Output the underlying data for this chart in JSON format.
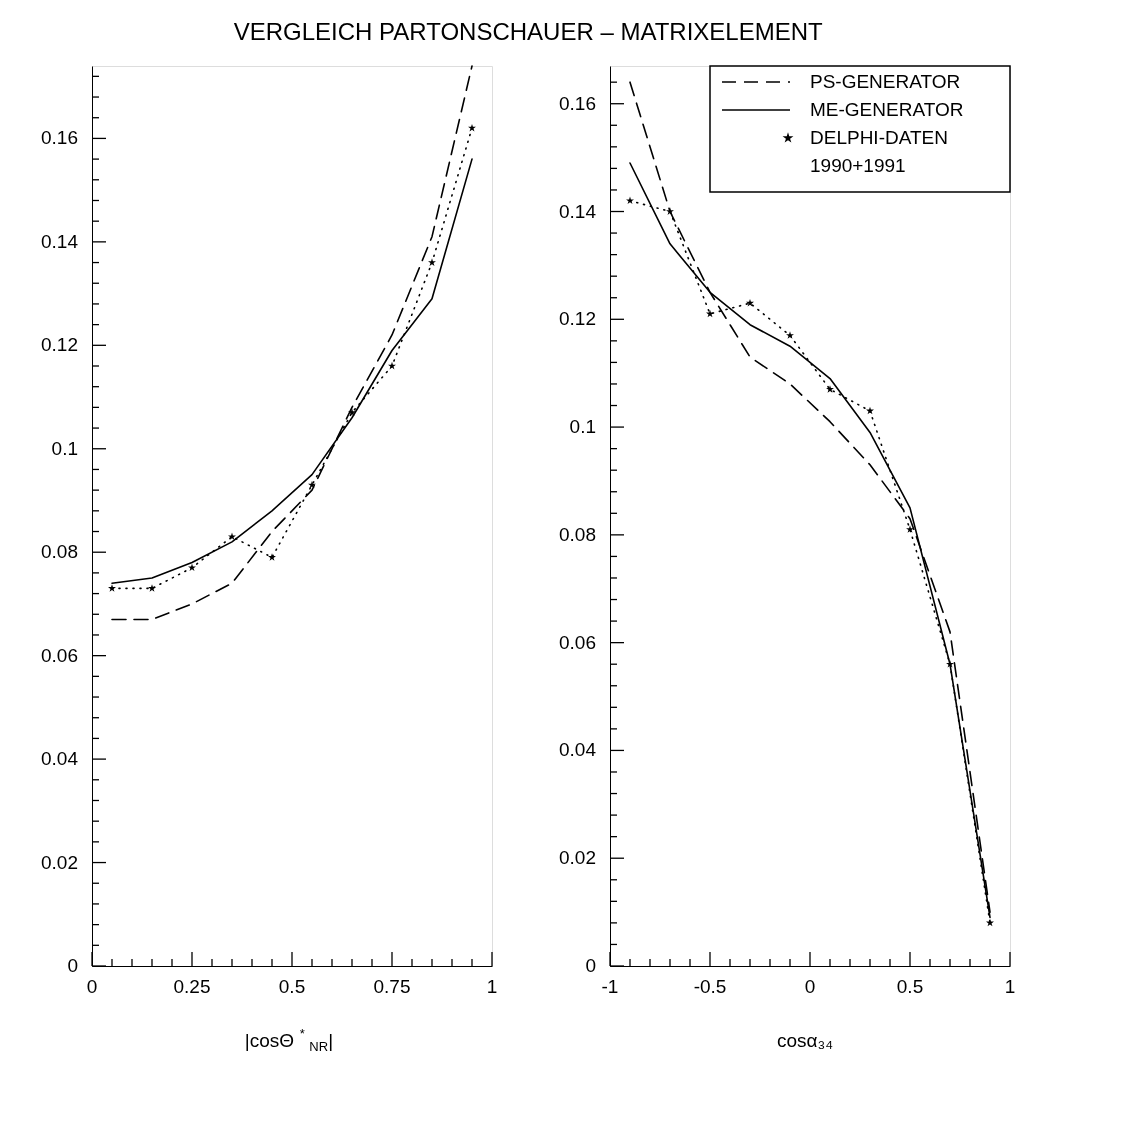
{
  "chart_data": [
    {
      "type": "line",
      "title": "VERGLEICH PARTONSCHAUER – MATRIXELEMENT",
      "xlabel": "|cosΘ$^{*}$$_{NR}$|",
      "x": [
        0.05,
        0.15,
        0.25,
        0.35,
        0.45,
        0.55,
        0.65,
        0.75,
        0.85,
        0.95
      ],
      "series": [
        {
          "color": "#000000",
          "line_style": "dashed",
          "marker": "none",
          "values": [
            0.067,
            0.067,
            0.07,
            0.074,
            0.084,
            0.092,
            0.108,
            0.122,
            0.141,
            0.174
          ]
        },
        {
          "color": "#000000",
          "line_style": "solid",
          "marker": "none",
          "values": [
            0.074,
            0.075,
            0.078,
            0.082,
            0.088,
            0.095,
            0.106,
            0.119,
            0.129,
            0.156
          ]
        },
        {
          "color": "#000000",
          "line_style": "dotted",
          "marker": "star",
          "values": [
            0.073,
            0.073,
            0.077,
            0.083,
            0.079,
            0.093,
            0.107,
            0.116,
            0.136,
            0.162
          ]
        }
      ],
      "xlim": [
        0,
        1
      ],
      "xticks": [
        0,
        {
          "value": 0.05,
          "label": null
        },
        {
          "value": 0.1,
          "label": null
        },
        {
          "value": 0.15,
          "label": null
        },
        {
          "value": 0.2,
          "label": null
        },
        0.25,
        {
          "value": 0.3,
          "label": null
        },
        {
          "value": 0.35,
          "label": null
        },
        {
          "value": 0.4,
          "label": null
        },
        {
          "value": 0.45,
          "label": null
        },
        0.5,
        {
          "value": 0.55,
          "label": null
        },
        {
          "value": 0.6,
          "label": null
        },
        {
          "value": 0.65,
          "label": null
        },
        {
          "value": 0.7,
          "label": null
        },
        0.75,
        {
          "value": 0.8,
          "label": null
        },
        {
          "value": 0.85,
          "label": null
        },
        {
          "value": 0.9,
          "label": null
        },
        {
          "value": 0.95,
          "label": null
        },
        1
      ],
      "ylim": [
        0,
        0.174
      ],
      "yticks": [
        0,
        {
          "value": 0.004,
          "label": null
        },
        {
          "value": 0.008,
          "label": null
        },
        {
          "value": 0.012,
          "label": null
        },
        {
          "value": 0.016,
          "label": null
        },
        0.02,
        {
          "value": 0.024,
          "label": null
        },
        {
          "value": 0.028,
          "label": null
        },
        {
          "value": 0.032,
          "label": null
        },
        {
          "value": 0.036,
          "label": null
        },
        0.04,
        {
          "value": 0.044,
          "label": null
        },
        {
          "value": 0.048,
          "label": null
        },
        {
          "value": 0.052,
          "label": null
        },
        {
          "value": 0.056,
          "label": null
        },
        0.06,
        {
          "value": 0.064,
          "label": null
        },
        {
          "value": 0.068,
          "label": null
        },
        {
          "value": 0.072,
          "label": null
        },
        {
          "value": 0.076,
          "label": null
        },
        0.08,
        {
          "value": 0.084,
          "label": null
        },
        {
          "value": 0.088,
          "label": null
        },
        {
          "value": 0.092,
          "label": null
        },
        {
          "value": 0.096,
          "label": null
        },
        0.1,
        {
          "value": 0.104,
          "label": null
        },
        {
          "value": 0.108,
          "label": null
        },
        {
          "value": 0.112,
          "label": null
        },
        {
          "value": 0.116,
          "label": null
        },
        0.12,
        {
          "value": 0.124,
          "label": null
        },
        {
          "value": 0.128,
          "label": null
        },
        {
          "value": 0.132,
          "label": null
        },
        {
          "value": 0.136,
          "label": null
        },
        0.14,
        {
          "value": 0.144,
          "label": null
        },
        {
          "value": 0.148,
          "label": null
        },
        {
          "value": 0.152,
          "label": null
        },
        {
          "value": 0.156,
          "label": null
        },
        0.16,
        {
          "value": 0.164,
          "label": null
        },
        {
          "value": 0.168,
          "label": null
        },
        {
          "value": 0.172,
          "label": null
        }
      ]
    },
    {
      "type": "line",
      "xlabel": "cosα₃₄",
      "legend": "top right",
      "x": [
        -0.9,
        -0.7,
        -0.5,
        -0.3,
        -0.1,
        0.1,
        0.3,
        0.5,
        0.7,
        0.9
      ],
      "series": [
        {
          "name": "PS-GENERATOR",
          "color": "#000000",
          "line_style": "dashed",
          "marker": "none",
          "values": [
            0.164,
            0.14,
            0.125,
            0.113,
            0.108,
            0.101,
            0.093,
            0.083,
            0.062,
            0.01
          ]
        },
        {
          "name": "ME-GENERATOR",
          "color": "#000000",
          "line_style": "solid",
          "marker": "none",
          "values": [
            0.149,
            0.134,
            0.125,
            0.119,
            0.115,
            0.109,
            0.099,
            0.085,
            0.056,
            0.009
          ]
        },
        {
          "name": "DELPHI-DATEN\n1990+1991",
          "color": "#000000",
          "line_style": "dotted",
          "marker": "star",
          "values": [
            0.142,
            0.14,
            0.121,
            0.123,
            0.117,
            0.107,
            0.103,
            0.081,
            0.056,
            0.008
          ]
        }
      ],
      "xlim": [
        -1,
        1
      ],
      "xticks": [
        -1,
        {
          "value": -0.9,
          "label": null
        },
        {
          "value": -0.8,
          "label": null
        },
        {
          "value": -0.7,
          "label": null
        },
        {
          "value": -0.6,
          "label": null
        },
        -0.5,
        {
          "value": -0.4,
          "label": null
        },
        {
          "value": -0.3,
          "label": null
        },
        {
          "value": -0.2,
          "label": null
        },
        {
          "value": -0.1,
          "label": null
        },
        0,
        {
          "value": 0.1,
          "label": null
        },
        {
          "value": 0.2,
          "label": null
        },
        {
          "value": 0.3,
          "label": null
        },
        {
          "value": 0.4,
          "label": null
        },
        0.5,
        {
          "value": 0.6,
          "label": null
        },
        {
          "value": 0.7,
          "label": null
        },
        {
          "value": 0.8,
          "label": null
        },
        {
          "value": 0.9,
          "label": null
        },
        1
      ],
      "ylim": [
        0,
        0.167
      ],
      "yticks": [
        0,
        {
          "value": 0.004,
          "label": null
        },
        {
          "value": 0.008,
          "label": null
        },
        {
          "value": 0.012,
          "label": null
        },
        {
          "value": 0.016,
          "label": null
        },
        0.02,
        {
          "value": 0.024,
          "label": null
        },
        {
          "value": 0.028,
          "label": null
        },
        {
          "value": 0.032,
          "label": null
        },
        {
          "value": 0.036,
          "label": null
        },
        0.04,
        {
          "value": 0.044,
          "label": null
        },
        {
          "value": 0.048,
          "label": null
        },
        {
          "value": 0.052,
          "label": null
        },
        {
          "value": 0.056,
          "label": null
        },
        0.06,
        {
          "value": 0.064,
          "label": null
        },
        {
          "value": 0.068,
          "label": null
        },
        {
          "value": 0.072,
          "label": null
        },
        {
          "value": 0.076,
          "label": null
        },
        0.08,
        {
          "value": 0.084,
          "label": null
        },
        {
          "value": 0.088,
          "label": null
        },
        {
          "value": 0.092,
          "label": null
        },
        {
          "value": 0.096,
          "label": null
        },
        0.1,
        {
          "value": 0.104,
          "label": null
        },
        {
          "value": 0.108,
          "label": null
        },
        {
          "value": 0.112,
          "label": null
        },
        {
          "value": 0.116,
          "label": null
        },
        0.12,
        {
          "value": 0.124,
          "label": null
        },
        {
          "value": 0.128,
          "label": null
        },
        {
          "value": 0.132,
          "label": null
        },
        {
          "value": 0.136,
          "label": null
        },
        0.14,
        {
          "value": 0.144,
          "label": null
        },
        {
          "value": 0.148,
          "label": null
        },
        {
          "value": 0.152,
          "label": null
        },
        {
          "value": 0.156,
          "label": null
        },
        0.16,
        {
          "value": 0.164,
          "label": null
        }
      ]
    }
  ]
}
